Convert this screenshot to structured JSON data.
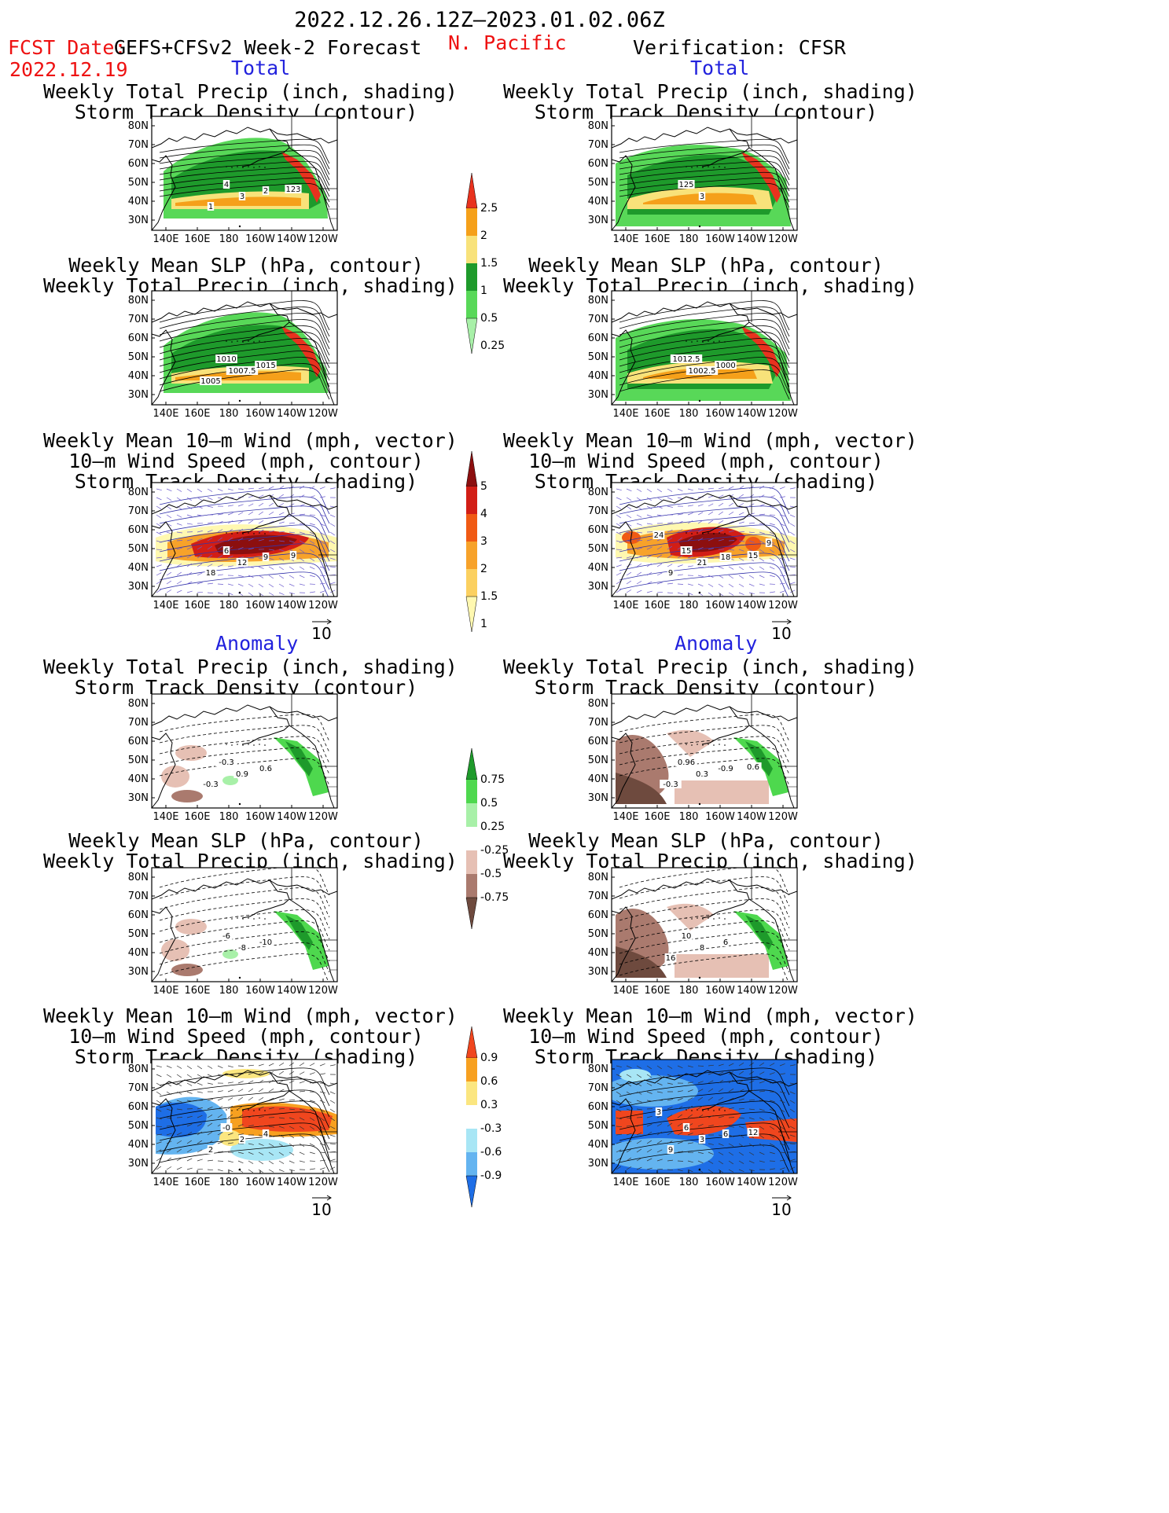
{
  "header": {
    "period": "2022.12.26.12Z–2023.01.02.06Z",
    "fcst_label": "FCST Date:",
    "fcst_date": "2022.12.19",
    "region": "N. Pacific",
    "left_model": "GEFS+CFSv2 Week-2 Forecast",
    "right_model": "Verification: CFSR"
  },
  "sections": {
    "total": "Total",
    "anomaly": "Anomaly"
  },
  "titles": {
    "precip_storm": [
      "Weekly Total Precip (inch, shading)",
      "Storm Track Density (contour)"
    ],
    "slp_precip": [
      "Weekly Mean SLP (hPa, contour)",
      "Weekly Total Precip (inch, shading)"
    ],
    "wind_storm": [
      "Weekly Mean 10–m Wind (mph, vector)",
      "10–m Wind Speed (mph, contour)",
      "Storm Track Density (shading)"
    ]
  },
  "axes": {
    "lat_labels": [
      "80N",
      "70N",
      "60N",
      "50N",
      "40N",
      "30N"
    ],
    "lon_labels": [
      "140E",
      "160E",
      "180",
      "160W",
      "140W",
      "120W"
    ]
  },
  "vector_ref": "10",
  "colorbars": [
    {
      "id": "precip_total",
      "labels": [
        "2.5",
        "2",
        "1.5",
        "1",
        "0.5",
        "0.25"
      ],
      "colors": [
        "#e8321e",
        "#f5a01a",
        "#f8e27a",
        "#1e9a2b",
        "#58d858",
        "#a8f0a8"
      ]
    },
    {
      "id": "storm_total",
      "labels": [
        "5",
        "4",
        "3",
        "2",
        "1.5",
        "1"
      ],
      "colors": [
        "#8c0f0f",
        "#d21e16",
        "#f05a14",
        "#f7a22a",
        "#fbd060",
        "#fff8b0"
      ]
    },
    {
      "id": "precip_anom",
      "labels": [
        "0.75",
        "0.5",
        "0.25",
        "-0.25",
        "-0.5",
        "-0.75"
      ],
      "colors": [
        "#1e9a2b",
        "#4ed84e",
        "#a8f0a8",
        "#ffffff",
        "#e6c0b4",
        "#aa7a6e",
        "#6e4a3e"
      ]
    },
    {
      "id": "storm_anom",
      "labels": [
        "0.9",
        "0.6",
        "0.3",
        "-0.3",
        "-0.6",
        "-0.9"
      ],
      "colors": [
        "#f0461e",
        "#f7a020",
        "#fbe680",
        "#ffffff",
        "#a8e6f5",
        "#64b4f0",
        "#1e6ee6"
      ]
    }
  ],
  "contour_labels": {
    "p1": [
      "4",
      "3",
      "2",
      "1",
      "123"
    ],
    "p2": [
      "1010",
      "1007.5",
      "1015",
      "1005"
    ],
    "p3": [
      "6",
      "12",
      "9",
      "18",
      "9"
    ],
    "p4": [
      "-0.3",
      "0.9",
      "0.6",
      "-0.3"
    ],
    "p5": [
      "-6",
      "-8",
      "-10"
    ],
    "p6": [
      "-0",
      "2",
      "4",
      "2"
    ],
    "p7": [
      "125",
      "3"
    ],
    "p8": [
      "1012.5",
      "1002.5",
      "1000"
    ],
    "p9": [
      "15",
      "21",
      "18",
      "9",
      "15",
      "24",
      "9"
    ],
    "p10": [
      "0.96",
      "0.3",
      "-0.9",
      "-0.3",
      "0.6"
    ],
    "p11": [
      "10",
      "8",
      "6",
      "16"
    ],
    "p12": [
      "6",
      "3",
      "6",
      "9",
      "12",
      "3"
    ]
  }
}
